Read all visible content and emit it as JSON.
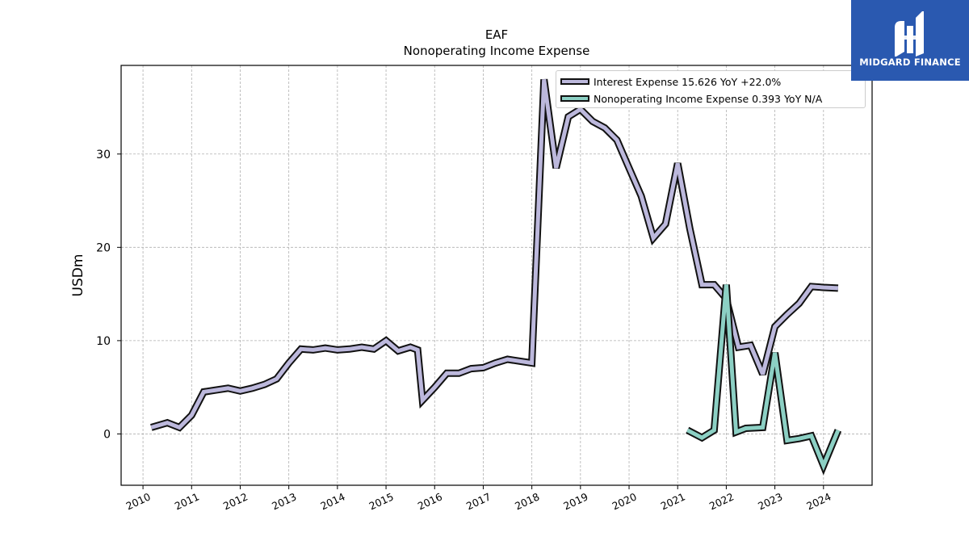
{
  "chart_data": {
    "type": "line",
    "title": "EAF",
    "subtitle": "Nonoperating Income Expense",
    "xlabel": "",
    "ylabel": "USDm",
    "xlim": [
      2009.55,
      2025.0
    ],
    "ylim": [
      -5.5,
      39.5
    ],
    "x_ticks": [
      2010,
      2011,
      2012,
      2013,
      2014,
      2015,
      2016,
      2017,
      2018,
      2019,
      2020,
      2021,
      2022,
      2023,
      2024
    ],
    "y_ticks": [
      0,
      10,
      20,
      30
    ],
    "grid": true,
    "legend_position": "top-right",
    "series": [
      {
        "name": "Interest Expense",
        "legend_label": "Interest Expense  15.626 YoY +22.0%",
        "color": "#bcb8dc",
        "x": [
          2010.17,
          2010.5,
          2010.75,
          2011.0,
          2011.25,
          2011.5,
          2011.75,
          2012.0,
          2012.25,
          2012.5,
          2012.75,
          2013.0,
          2013.25,
          2013.5,
          2013.75,
          2014.0,
          2014.25,
          2014.5,
          2014.75,
          2015.0,
          2015.25,
          2015.5,
          2015.65,
          2015.75,
          2016.0,
          2016.25,
          2016.5,
          2016.75,
          2017.0,
          2017.25,
          2017.5,
          2017.75,
          2018.0,
          2018.25,
          2018.5,
          2018.75,
          2019.0,
          2019.25,
          2019.5,
          2019.75,
          2020.0,
          2020.25,
          2020.5,
          2020.75,
          2021.0,
          2021.25,
          2021.5,
          2021.75,
          2022.0,
          2022.25,
          2022.5,
          2022.75,
          2023.0,
          2023.25,
          2023.5,
          2023.75,
          2024.0,
          2024.3
        ],
        "values": [
          0.7,
          1.2,
          0.7,
          2.0,
          4.5,
          4.7,
          4.9,
          4.6,
          4.9,
          5.3,
          5.9,
          7.6,
          9.1,
          9.0,
          9.2,
          9.0,
          9.1,
          9.3,
          9.1,
          10.0,
          8.9,
          9.3,
          9.0,
          3.6,
          5.0,
          6.5,
          6.5,
          7.0,
          7.1,
          7.6,
          8.0,
          7.8,
          7.6,
          38.0,
          28.5,
          34.0,
          34.8,
          33.5,
          32.8,
          31.5,
          28.5,
          25.5,
          21.0,
          22.5,
          29.0,
          22.0,
          16.0,
          16.0,
          14.5,
          9.3,
          9.5,
          6.4,
          11.5,
          12.8,
          14.0,
          15.8,
          15.7,
          15.626
        ]
      },
      {
        "name": "Nonoperating Income Expense",
        "legend_label": "Nonoperating Income Expense  0.393 YoY N/A",
        "color": "#8cd0c4",
        "x": [
          2021.2,
          2021.5,
          2021.75,
          2022.0,
          2022.2,
          2022.4,
          2022.75,
          2023.0,
          2023.25,
          2023.5,
          2023.75,
          2024.0,
          2024.3
        ],
        "values": [
          0.4,
          -0.4,
          0.4,
          16.0,
          0.2,
          0.6,
          0.7,
          8.7,
          -0.7,
          -0.5,
          -0.2,
          -3.4,
          0.393
        ]
      }
    ]
  },
  "logo": {
    "text": "MIDGARD FINANCE",
    "background": "#2a59b0"
  }
}
